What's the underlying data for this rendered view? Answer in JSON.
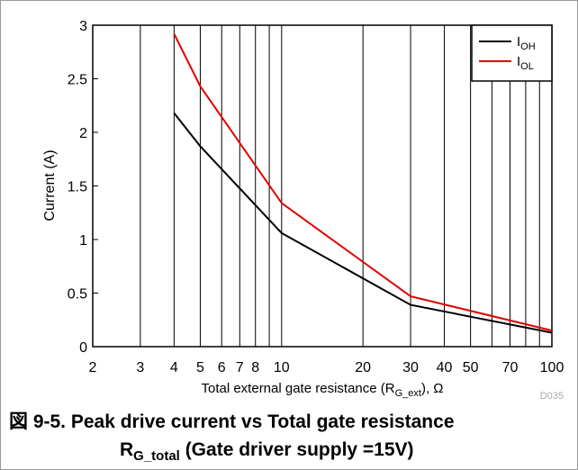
{
  "chart_data": {
    "type": "line",
    "ylabel": "Current (A)",
    "xlabel": [
      "Total external gate resistance (R",
      "G_ext",
      "), Ω"
    ],
    "caption_line1": "図 9-5. Peak drive current vs Total gate resistance",
    "caption_line2": [
      "R",
      "G_total",
      " (Gate driver supply =15V)"
    ],
    "code": "D035",
    "x": [
      4,
      5,
      10,
      30,
      100
    ],
    "series": [
      {
        "name": "IOH",
        "color": "#000000",
        "values": [
          2.18,
          1.87,
          1.06,
          0.39,
          0.13
        ]
      },
      {
        "name": "IOL",
        "color": "#e00000",
        "values": [
          2.92,
          2.43,
          1.34,
          0.47,
          0.15
        ]
      }
    ],
    "xlog": true,
    "xlim": [
      2,
      100
    ],
    "xticks": [
      2,
      3,
      4,
      5,
      6,
      7,
      8,
      10,
      20,
      30,
      40,
      50,
      70,
      100
    ],
    "xgrid_minor": [
      9,
      60,
      80,
      90
    ],
    "ylim": [
      0,
      3
    ],
    "yticks": [
      0,
      0.5,
      1,
      1.5,
      2,
      2.5,
      3
    ],
    "legend": "upper right"
  }
}
